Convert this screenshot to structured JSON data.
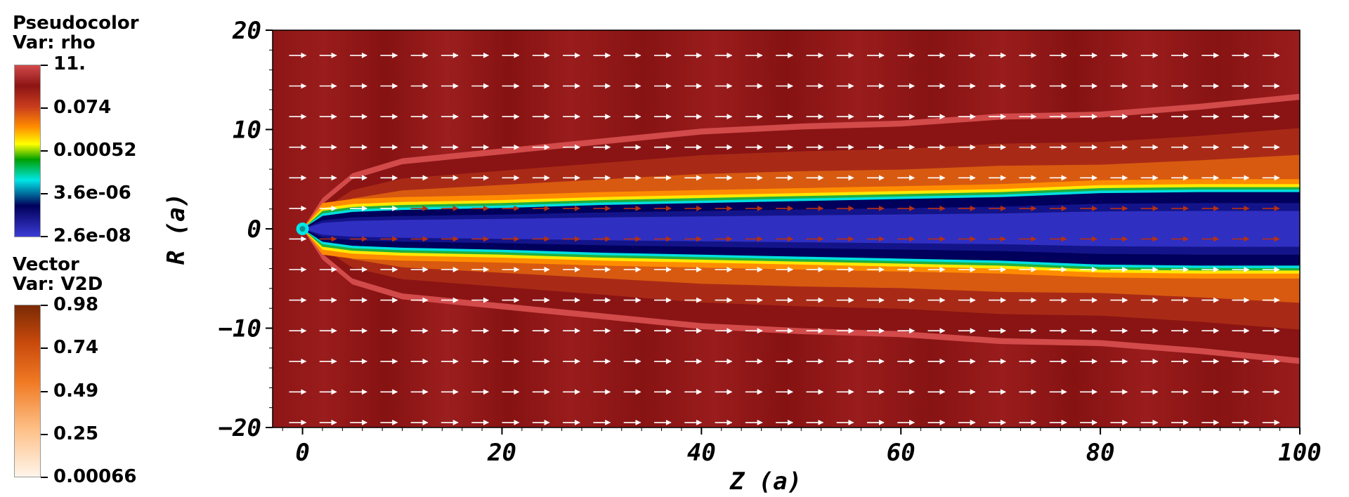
{
  "legend": {
    "pseudocolor": {
      "title": "Pseudocolor",
      "var_label": "Var: rho",
      "ticks": [
        "11.",
        "0.074",
        "0.00052",
        "3.6e-06",
        "2.6e-08"
      ]
    },
    "vector": {
      "title": "Vector",
      "var_label": "Var: V2D",
      "ticks": [
        "0.98",
        "0.74",
        "0.49",
        "0.25",
        "0.00066"
      ]
    }
  },
  "chart_data": {
    "type": "heatmap",
    "title": "",
    "xlabel": "Z  (a)",
    "ylabel": "R  (a)",
    "xlim": [
      -3,
      100
    ],
    "ylim": [
      -20,
      20
    ],
    "xticks": [
      "0",
      "20",
      "40",
      "60",
      "80",
      "100"
    ],
    "yticks": [
      "20",
      "10",
      "0",
      "-10",
      "-20"
    ],
    "field": "rho (log scale, jet colormap)",
    "colormap_rho": [
      "#3b3bd6",
      "#00005a",
      "#00e6e6",
      "#00a000",
      "#ffff00",
      "#ff8c00",
      "#c83c1e",
      "#d24a4a"
    ],
    "colormap_v2d": [
      "#fff5ea",
      "#fdbf86",
      "#f07a24",
      "#c94a0c",
      "#7a2a05"
    ],
    "rho_range": [
      2.6e-08,
      11
    ],
    "v2d_range": [
      0.00066,
      0.98
    ],
    "jet_boundary_R": {
      "z": [
        0,
        2,
        5,
        10,
        20,
        30,
        40,
        50,
        60,
        70,
        80,
        90,
        100
      ],
      "inner": [
        0,
        1.2,
        1.6,
        1.8,
        2.0,
        2.3,
        2.5,
        2.7,
        2.9,
        3.1,
        3.5,
        3.6,
        3.6
      ],
      "outer": [
        0,
        2.5,
        5,
        6.5,
        7.5,
        8.5,
        9.5,
        10,
        10.3,
        11,
        11.2,
        12,
        13
      ]
    },
    "vector_field": {
      "direction": "+Z",
      "arrow_color_ambient": "#ffffff",
      "arrow_color_jet": "#b83010"
    }
  }
}
